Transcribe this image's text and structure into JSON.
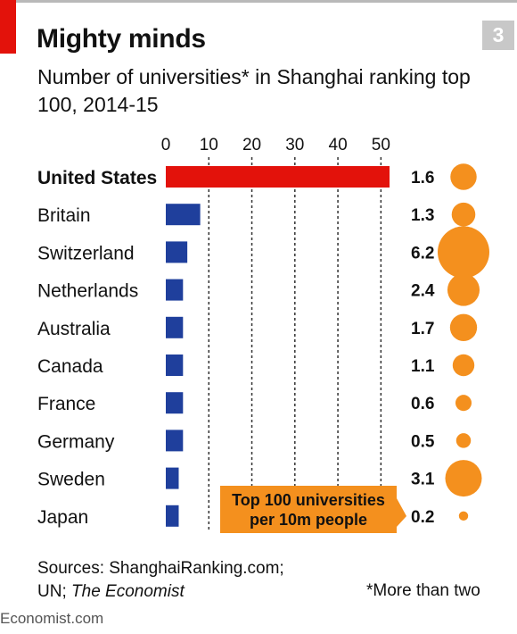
{
  "header": {
    "title": "Mighty minds",
    "badge": "3",
    "subtitle": "Number of universities* in Shanghai ranking top 100, 2014-15"
  },
  "callout": {
    "line1": "Top 100 universities",
    "line2": "per 10m people"
  },
  "footer": {
    "sources_prefix": "Sources: ShanghaiRanking.com;",
    "sources_line2": "UN;",
    "sources_italic": "The Economist",
    "footnote": "*More than two",
    "brand": "Economist.com"
  },
  "colors": {
    "highlight_bar": "#e3120b",
    "bar": "#1f3f9c",
    "bubble": "#f4901e",
    "callout_bg": "#f4901e"
  },
  "chart_data": {
    "type": "bar",
    "orientation": "horizontal",
    "title": "Mighty minds",
    "subtitle": "Number of universities* in Shanghai ranking top 100, 2014-15",
    "categories": [
      "United States",
      "Britain",
      "Switzerland",
      "Netherlands",
      "Australia",
      "Canada",
      "France",
      "Germany",
      "Sweden",
      "Japan"
    ],
    "values": [
      52,
      8,
      5,
      4,
      4,
      4,
      4,
      4,
      3,
      3
    ],
    "highlight": "United States",
    "xlim": [
      0,
      52
    ],
    "xticks": [
      0,
      10,
      20,
      30,
      40,
      50
    ],
    "grid": true,
    "per_capita": {
      "name": "Top 100 universities per 10m people",
      "labels": [
        "1.6",
        "1.3",
        "6.2",
        "2.4",
        "1.7",
        "1.1",
        "0.6",
        "0.5",
        "3.1",
        "0.2"
      ],
      "values": [
        1.6,
        1.3,
        6.2,
        2.4,
        1.7,
        1.1,
        0.6,
        0.5,
        3.1,
        0.2
      ]
    }
  }
}
